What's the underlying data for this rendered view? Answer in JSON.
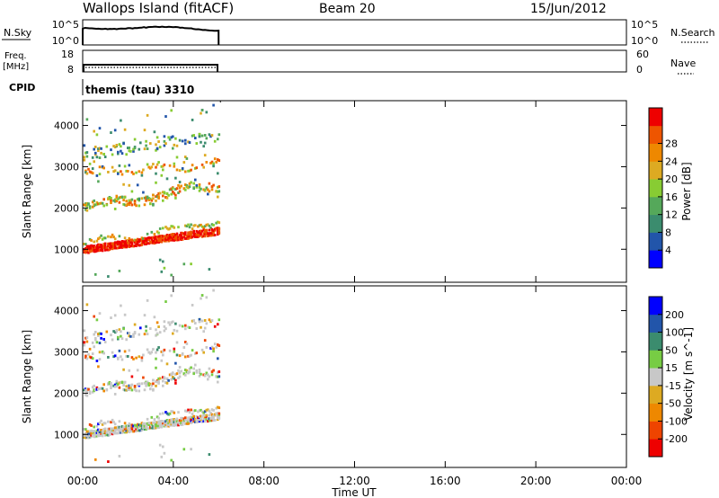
{
  "header": {
    "title": "Wallops Island (fitACF)",
    "beam": "Beam 20",
    "date": "15/Jun/2012"
  },
  "nsky_panel": {
    "left_label": "N.Sky",
    "right_label": "N.Search",
    "left_ticks": [
      "10^5",
      "10^0"
    ],
    "right_ticks": [
      "10^5",
      "10^0"
    ]
  },
  "freq_panel": {
    "left_label_1": "Freq.",
    "left_label_2": "[MHz]",
    "right_label": "Nave",
    "left_ticks": [
      "18",
      "8"
    ],
    "right_ticks": [
      "60",
      "0"
    ]
  },
  "cpid_panel": {
    "label": "CPID",
    "program": "themis (tau) 3310"
  },
  "colors": {
    "power_scale": [
      "#0000ff",
      "#2255aa",
      "#3b8c6e",
      "#55a85a",
      "#88cc33",
      "#ddaa22",
      "#ee8800",
      "#ee5500",
      "#ee0000"
    ],
    "velocity_scale": [
      "#0000ff",
      "#2255aa",
      "#3b8c6e",
      "#77cc44",
      "#c8c8c8",
      "#ddaa22",
      "#ee8800",
      "#ee4400",
      "#ee0000"
    ]
  },
  "chart_data": [
    {
      "type": "heatmap",
      "name": "power",
      "xlabel": "",
      "ylabel": "Slant Range [km]",
      "xlim": [
        0,
        24
      ],
      "ylim": [
        200,
        4600
      ],
      "yticks": [
        1000,
        2000,
        3000,
        4000
      ],
      "colorbar_label": "Power [dB]",
      "colorbar_ticks": [
        "4",
        "8",
        "12",
        "16",
        "20",
        "24",
        "28"
      ],
      "data_time_range": [
        0,
        6
      ],
      "bands": [
        {
          "range_start": 950,
          "range_end": 1450,
          "value": 28
        },
        {
          "range_start": 1100,
          "range_end": 1650,
          "value": 14
        },
        {
          "range_start": 1950,
          "range_end": 2500,
          "value": 22
        },
        {
          "range_start": 2850,
          "range_end": 3100,
          "value": 20
        },
        {
          "range_start": 3250,
          "range_end": 3800,
          "value": 12
        }
      ]
    },
    {
      "type": "heatmap",
      "name": "velocity",
      "xlabel": "Time UT",
      "ylabel": "Slant Range [km]",
      "xlim": [
        0,
        24
      ],
      "ylim": [
        200,
        4600
      ],
      "yticks": [
        1000,
        2000,
        3000,
        4000
      ],
      "xtick_labels": [
        "00:00",
        "04:00",
        "08:00",
        "12:00",
        "16:00",
        "20:00",
        "00:00"
      ],
      "colorbar_label": "Velocity [m s^-1]",
      "colorbar_ticks": [
        "200",
        "100",
        "50",
        "15",
        "-15",
        "-50",
        "-100",
        "-200"
      ],
      "data_time_range": [
        0,
        6
      ]
    }
  ]
}
